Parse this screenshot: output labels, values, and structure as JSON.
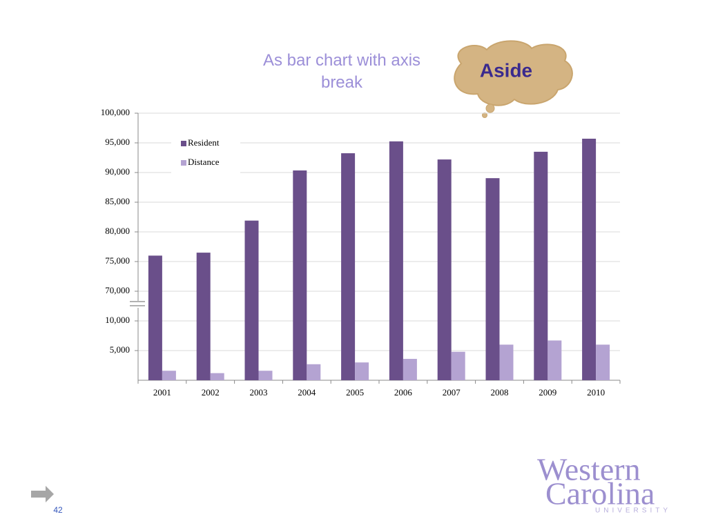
{
  "chart_data": {
    "type": "bar",
    "title": "As bar chart with axis break",
    "categories": [
      "2001",
      "2002",
      "2003",
      "2004",
      "2005",
      "2006",
      "2007",
      "2008",
      "2009",
      "2010"
    ],
    "series": [
      {
        "name": "Resident",
        "color": "#6a4f8a",
        "values": [
          76000,
          76500,
          81900,
          90350,
          93250,
          95250,
          92200,
          89050,
          93500,
          95700
        ]
      },
      {
        "name": "Distance",
        "color": "#b4a3d2",
        "values": [
          1600,
          1200,
          1600,
          2700,
          3000,
          3600,
          4800,
          6000,
          6700,
          6000
        ]
      }
    ],
    "ylim": [
      0,
      100000
    ],
    "axis_break": [
      10000,
      70000
    ],
    "yticks": [
      {
        "value": 5000,
        "label": "5,000"
      },
      {
        "value": 10000,
        "label": "10,000"
      },
      {
        "value": 70000,
        "label": "70,000"
      },
      {
        "value": 75000,
        "label": "75,000"
      },
      {
        "value": 80000,
        "label": "80,000"
      },
      {
        "value": 85000,
        "label": "85,000"
      },
      {
        "value": 90000,
        "label": "90,000"
      },
      {
        "value": 95000,
        "label": "95,000"
      },
      {
        "value": 100000,
        "label": "100,000"
      }
    ],
    "grid": true,
    "legend": "upper left"
  },
  "slide": {
    "aside": "Aside",
    "page_number": "42",
    "logo": {
      "line1": "Western",
      "line2": "Carolina",
      "line3": "UNIVERSITY"
    }
  }
}
